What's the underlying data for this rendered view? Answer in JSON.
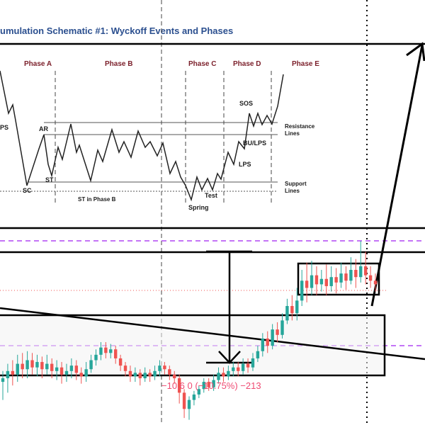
{
  "schematic": {
    "title": "umulation Schematic #1: Wyckoff Events and Phases",
    "phases": [
      "Phase A",
      "Phase B",
      "Phase C",
      "Phase D",
      "Phase E"
    ],
    "events": {
      "ps": "PS",
      "ar": "AR",
      "st": "ST",
      "sc": "SC",
      "st_phase_b": "ST in Phase B",
      "spring": "Spring",
      "test": "Test",
      "sos": "SOS",
      "bu_lps": "BU/LPS",
      "lps": "LPS"
    },
    "resistance_label": [
      "Resistance",
      "Lines"
    ],
    "support_label": [
      "Support",
      "Lines"
    ]
  },
  "chart": {
    "change_label": "−10,6 0 (−10.75%) −213"
  },
  "colors": {
    "bull": "#26a69a",
    "bear": "#ef5350",
    "dashed_purple": "#a020f0",
    "phase_text": "#7b1f2a",
    "title_text": "#2b4f8f"
  },
  "chart_data": {
    "type": "candlestick",
    "candles": [
      [
        0.18,
        0.2,
        0.08,
        0.24
      ],
      [
        0.2,
        0.24,
        0.12,
        0.28
      ],
      [
        0.24,
        0.22,
        0.16,
        0.3
      ],
      [
        0.22,
        0.28,
        0.18,
        0.33
      ],
      [
        0.28,
        0.25,
        0.2,
        0.34
      ],
      [
        0.25,
        0.3,
        0.2,
        0.35
      ],
      [
        0.3,
        0.26,
        0.22,
        0.34
      ],
      [
        0.26,
        0.29,
        0.21,
        0.33
      ],
      [
        0.29,
        0.25,
        0.2,
        0.32
      ],
      [
        0.25,
        0.28,
        0.22,
        0.33
      ],
      [
        0.28,
        0.24,
        0.2,
        0.31
      ],
      [
        0.24,
        0.26,
        0.19,
        0.3
      ],
      [
        0.26,
        0.22,
        0.17,
        0.29
      ],
      [
        0.22,
        0.24,
        0.18,
        0.28
      ],
      [
        0.24,
        0.27,
        0.2,
        0.31
      ],
      [
        0.27,
        0.23,
        0.19,
        0.3
      ],
      [
        0.23,
        0.21,
        0.17,
        0.26
      ],
      [
        0.21,
        0.25,
        0.18,
        0.29
      ],
      [
        0.25,
        0.3,
        0.23,
        0.33
      ],
      [
        0.3,
        0.33,
        0.27,
        0.36
      ],
      [
        0.33,
        0.37,
        0.3,
        0.4
      ],
      [
        0.37,
        0.34,
        0.31,
        0.4
      ],
      [
        0.34,
        0.36,
        0.31,
        0.39
      ],
      [
        0.36,
        0.31,
        0.28,
        0.38
      ],
      [
        0.31,
        0.27,
        0.24,
        0.33
      ],
      [
        0.27,
        0.24,
        0.21,
        0.29
      ],
      [
        0.24,
        0.21,
        0.18,
        0.27
      ],
      [
        0.21,
        0.23,
        0.18,
        0.26
      ],
      [
        0.23,
        0.2,
        0.16,
        0.25
      ],
      [
        0.2,
        0.23,
        0.18,
        0.26
      ],
      [
        0.23,
        0.21,
        0.18,
        0.25
      ],
      [
        0.21,
        0.24,
        0.19,
        0.27
      ],
      [
        0.24,
        0.27,
        0.21,
        0.3
      ],
      [
        0.27,
        0.25,
        0.22,
        0.29
      ],
      [
        0.25,
        0.22,
        0.19,
        0.27
      ],
      [
        0.22,
        0.2,
        0.17,
        0.24
      ],
      [
        0.2,
        0.12,
        0.06,
        0.22
      ],
      [
        0.12,
        0.03,
        -0.02,
        0.14
      ],
      [
        0.03,
        0.08,
        -0.03,
        0.1
      ],
      [
        0.08,
        0.11,
        0.05,
        0.13
      ],
      [
        0.11,
        0.14,
        0.09,
        0.16
      ],
      [
        0.14,
        0.18,
        0.12,
        0.2
      ],
      [
        0.18,
        0.15,
        0.13,
        0.2
      ],
      [
        0.15,
        0.19,
        0.13,
        0.22
      ],
      [
        0.19,
        0.23,
        0.17,
        0.26
      ],
      [
        0.23,
        0.21,
        0.18,
        0.26
      ],
      [
        0.21,
        0.24,
        0.19,
        0.27
      ],
      [
        0.24,
        0.26,
        0.21,
        0.29
      ],
      [
        0.26,
        0.24,
        0.21,
        0.29
      ],
      [
        0.24,
        0.28,
        0.22,
        0.31
      ],
      [
        0.28,
        0.26,
        0.23,
        0.31
      ],
      [
        0.26,
        0.31,
        0.24,
        0.34
      ],
      [
        0.31,
        0.35,
        0.29,
        0.38
      ],
      [
        0.35,
        0.42,
        0.32,
        0.45
      ],
      [
        0.42,
        0.38,
        0.34,
        0.46
      ],
      [
        0.38,
        0.47,
        0.36,
        0.5
      ],
      [
        0.47,
        0.44,
        0.4,
        0.51
      ],
      [
        0.44,
        0.52,
        0.42,
        0.56
      ],
      [
        0.52,
        0.6,
        0.5,
        0.64
      ],
      [
        0.6,
        0.56,
        0.52,
        0.66
      ],
      [
        0.56,
        0.63,
        0.52,
        0.7
      ],
      [
        0.63,
        0.74,
        0.6,
        0.8
      ],
      [
        0.74,
        0.7,
        0.62,
        0.84
      ],
      [
        0.7,
        0.77,
        0.66,
        0.85
      ],
      [
        0.77,
        0.72,
        0.66,
        0.82
      ],
      [
        0.72,
        0.75,
        0.68,
        0.8
      ],
      [
        0.75,
        0.71,
        0.66,
        0.83
      ],
      [
        0.71,
        0.76,
        0.68,
        0.82
      ],
      [
        0.76,
        0.73,
        0.67,
        0.81
      ],
      [
        0.73,
        0.78,
        0.7,
        0.84
      ],
      [
        0.78,
        0.74,
        0.69,
        0.82
      ],
      [
        0.74,
        0.8,
        0.72,
        0.87
      ],
      [
        0.8,
        0.76,
        0.7,
        0.86
      ],
      [
        0.76,
        0.82,
        0.73,
        0.96
      ],
      [
        0.82,
        0.77,
        0.72,
        0.9
      ],
      [
        0.77,
        0.74,
        0.7,
        0.82
      ],
      [
        0.74,
        0.72,
        0.68,
        0.78
      ]
    ]
  }
}
